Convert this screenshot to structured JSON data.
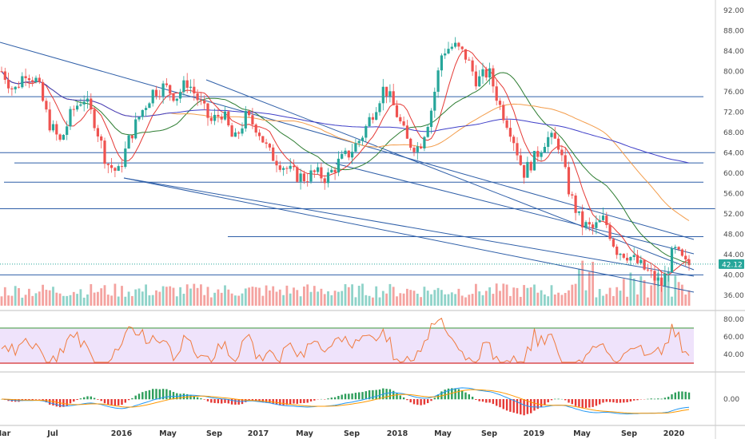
{
  "colors": {
    "up": "#26a69a",
    "down": "#ef5350",
    "ma_red": "#e53935",
    "ma_green": "#2e7d32",
    "ma_orange": "#f39c4a",
    "ma_blue": "#3f3fc8",
    "trend": "#2f5fa8",
    "rsi_line": "#f07b3f",
    "rsi_bg": "#efe3fb",
    "rsi_upper": "#3a9a3a",
    "rsi_lower": "#d32f2f",
    "macd_line": "#2196f3",
    "signal_line": "#ff9800",
    "last_price": "#26a69a"
  },
  "price_panel": {
    "y_ticks": [
      "92.00",
      "88.00",
      "84.00",
      "80.00",
      "76.00",
      "72.00",
      "68.00",
      "64.00",
      "60.00",
      "56.00",
      "52.00",
      "48.00",
      "44.00",
      "40.00",
      "36.00"
    ],
    "last_price_label": "42.12"
  },
  "rsi_panel": {
    "y_ticks": [
      "80.00",
      "60.00",
      "40.00"
    ]
  },
  "macd_panel": {
    "y_ticks": [
      "0.00"
    ]
  },
  "x_ticks": [
    "Mar",
    "Jul",
    "2016",
    "May",
    "Sep",
    "2017",
    "May",
    "Sep",
    "2018",
    "May",
    "Sep",
    "2019",
    "May",
    "Sep",
    "2020"
  ],
  "chart_data": {
    "type": "candlestick",
    "price_axis": {
      "ylim": [
        33,
        94
      ]
    },
    "horizontal_levels": [
      75,
      64,
      62,
      58.2,
      53,
      47.5,
      40
    ],
    "last_price": 42.12,
    "close_path": [
      [
        "Mar 2015",
        80
      ],
      [
        "Apr 2015",
        76
      ],
      [
        "May 2015",
        80
      ],
      [
        "Jun 2015",
        78
      ],
      [
        "Jul 2015",
        70
      ],
      [
        "Aug 2015",
        66
      ],
      [
        "Sep 2015",
        72
      ],
      [
        "Oct 2015",
        75
      ],
      [
        "Nov 2015",
        70
      ],
      [
        "Dec 2015",
        62
      ],
      [
        "Jan 2016",
        60
      ],
      [
        "Feb 2016",
        67
      ],
      [
        "Mar 2016",
        72
      ],
      [
        "Apr 2016",
        76
      ],
      [
        "May 2016",
        77
      ],
      [
        "Jun 2016",
        75
      ],
      [
        "Jul 2016",
        78
      ],
      [
        "Aug 2016",
        74
      ],
      [
        "Sep 2016",
        70
      ],
      [
        "Oct 2016",
        72
      ],
      [
        "Nov 2016",
        66
      ],
      [
        "Dec 2016",
        71
      ],
      [
        "Jan 2017",
        69
      ],
      [
        "Feb 2017",
        64
      ],
      [
        "Mar 2017",
        62
      ],
      [
        "Apr 2017",
        60
      ],
      [
        "May 2017",
        59
      ],
      [
        "Jun 2017",
        60
      ],
      [
        "Jul 2017",
        59
      ],
      [
        "Aug 2017",
        62
      ],
      [
        "Sep 2017",
        64
      ],
      [
        "Oct 2017",
        67
      ],
      [
        "Nov 2017",
        72
      ],
      [
        "Dec 2017",
        77
      ],
      [
        "Jan 2018",
        72
      ],
      [
        "Feb 2018",
        66
      ],
      [
        "Mar 2018",
        65
      ],
      [
        "Apr 2018",
        72
      ],
      [
        "May 2018",
        84
      ],
      [
        "Jun 2018",
        85
      ],
      [
        "Jul 2018",
        83
      ],
      [
        "Aug 2018",
        78
      ],
      [
        "Sep 2018",
        80
      ],
      [
        "Oct 2018",
        73
      ],
      [
        "Nov 2018",
        68
      ],
      [
        "Dec 2018",
        60
      ],
      [
        "Jan 2019",
        63
      ],
      [
        "Feb 2019",
        67
      ],
      [
        "Mar 2019",
        66
      ],
      [
        "Apr 2019",
        56
      ],
      [
        "May 2019",
        50
      ],
      [
        "Jun 2019",
        49
      ],
      [
        "Jul 2019",
        51
      ],
      [
        "Aug 2019",
        45
      ],
      [
        "Sep 2019",
        44
      ],
      [
        "Oct 2019",
        42
      ],
      [
        "Nov 2019",
        40
      ],
      [
        "Dec 2019",
        38
      ],
      [
        "Jan 2020",
        45
      ],
      [
        "Feb 2020",
        42
      ]
    ],
    "rsi": {
      "ylim": [
        20,
        90
      ],
      "upper": 70,
      "lower": 30
    },
    "macd": {
      "zero": 0
    }
  }
}
